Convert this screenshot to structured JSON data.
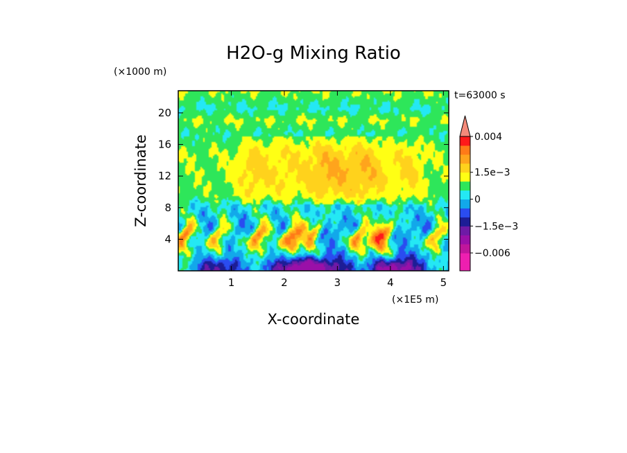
{
  "chart_data": {
    "type": "heatmap",
    "title": "H2O-g Mixing Ratio",
    "xlabel": "X-coordinate",
    "ylabel": "Z-coordinate",
    "x_unit": "(×1E5 m)",
    "y_unit": "(×1000 m)",
    "time_label": "t=63000 s",
    "xlim": [
      0.0,
      5.1
    ],
    "ylim": [
      0.0,
      22.8
    ],
    "x_ticks": [
      1,
      2,
      3,
      4,
      5
    ],
    "y_ticks": [
      4,
      8,
      12,
      16,
      20
    ],
    "colorbar": {
      "levels": [
        {
          "value": -0.009,
          "color": "#ee1fb0"
        },
        {
          "value": -0.008,
          "color": "#ee1fb0"
        },
        {
          "value": -0.006,
          "color": "#c0169c"
        },
        {
          "value": -0.004,
          "color": "#9a10a8"
        },
        {
          "value": -0.002,
          "color": "#6e1aa6"
        },
        {
          "value": -0.0015,
          "color": "#1d1d96"
        },
        {
          "value": -0.001,
          "color": "#2a4cf0"
        },
        {
          "value": -0.0005,
          "color": "#12a8ea"
        },
        {
          "value": 0.0,
          "color": "#24e8f4"
        },
        {
          "value": 0.0005,
          "color": "#2ee65a"
        },
        {
          "value": 0.001,
          "color": "#ffff14"
        },
        {
          "value": 0.0015,
          "color": "#ffd21c"
        },
        {
          "value": 0.002,
          "color": "#ffa41c"
        },
        {
          "value": 0.0025,
          "color": "#ff7a18"
        },
        {
          "value": 0.003,
          "color": "#ff1a1a"
        },
        {
          "value": 0.004,
          "color": "#f48a7a"
        }
      ],
      "labels": [
        "0.004",
        "1.5e−3",
        "0",
        "−1.5e−3",
        "−0.006"
      ]
    },
    "y_profile": [
      {
        "z": 0.0,
        "base": 0.1
      },
      {
        "z": 1.5,
        "base": 0.0
      },
      {
        "z": 3.5,
        "base": -0.1
      },
      {
        "z": 5.5,
        "base": -0.3
      },
      {
        "z": 8.0,
        "base": 0.22
      },
      {
        "z": 9.5,
        "base": 0.85
      },
      {
        "z": 15.0,
        "base": 0.95
      },
      {
        "z": 17.5,
        "base": 0.6
      },
      {
        "z": 19.0,
        "base": 1.0
      },
      {
        "z": 20.5,
        "base": 0.45
      },
      {
        "z": 22.8,
        "base": 1.0
      }
    ],
    "plumes": [
      {
        "x": 0.15,
        "amp": 3.0,
        "width": 0.11
      },
      {
        "x": 0.78,
        "amp": 2.4,
        "width": 0.1
      },
      {
        "x": 1.55,
        "amp": 2.8,
        "width": 0.12
      },
      {
        "x": 2.2,
        "amp": 3.4,
        "width": 0.13
      },
      {
        "x": 2.55,
        "amp": 2.2,
        "width": 0.09
      },
      {
        "x": 3.45,
        "amp": 2.6,
        "width": 0.11
      },
      {
        "x": 3.85,
        "amp": 3.3,
        "width": 0.13
      },
      {
        "x": 4.9,
        "amp": 2.5,
        "width": 0.1
      }
    ],
    "moist_columns": [
      {
        "x": 2.8,
        "amp": 1.1,
        "width": 0.32
      },
      {
        "x": 3.55,
        "amp": 1.0,
        "width": 0.3
      },
      {
        "x": 1.4,
        "amp": 0.8,
        "width": 0.22
      },
      {
        "x": 2.0,
        "amp": 0.6,
        "width": 0.25
      },
      {
        "x": 4.35,
        "amp": 0.7,
        "width": 0.2
      }
    ],
    "dry_pools": [
      {
        "x": 2.45,
        "amp": 4.5,
        "width": 0.45
      },
      {
        "x": 4.1,
        "amp": 3.5,
        "width": 0.35
      },
      {
        "x": 0.75,
        "amp": 2.5,
        "width": 0.25
      }
    ]
  }
}
